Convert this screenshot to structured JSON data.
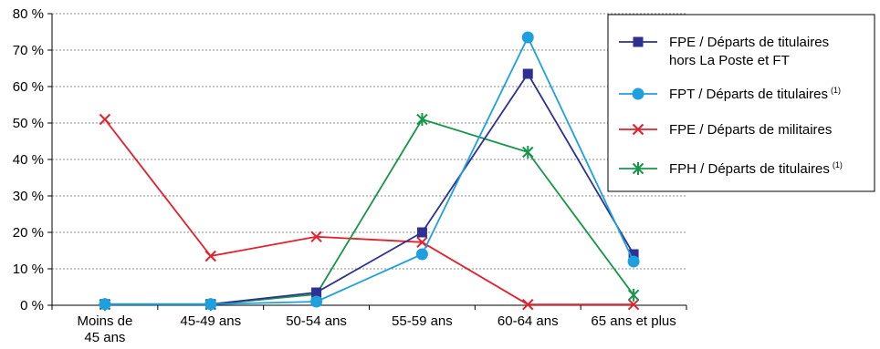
{
  "chart_data": {
    "type": "line",
    "title": "",
    "xlabel": "",
    "ylabel": "",
    "ylim": [
      0,
      80
    ],
    "y_ticks": [
      0,
      10,
      20,
      30,
      40,
      50,
      60,
      70,
      80
    ],
    "y_tick_labels": [
      "0 %",
      "10 %",
      "20 %",
      "30 %",
      "40 %",
      "50 %",
      "60 %",
      "70 %",
      "80 %"
    ],
    "categories": [
      [
        "Moins de",
        "45 ans"
      ],
      [
        "45-49 ans"
      ],
      [
        "50-54 ans"
      ],
      [
        "55-59 ans"
      ],
      [
        "60-64 ans"
      ],
      [
        "65 ans et plus"
      ]
    ],
    "grid": "horizontal dashed",
    "legend_position": "right",
    "series": [
      {
        "name_lines": [
          "FPE / Départs de titulaires",
          "hors La Poste et FT"
        ],
        "footnote": "",
        "marker": "square",
        "color": "#2e3192",
        "values": [
          0.3,
          0.3,
          3.5,
          20,
          63.5,
          14
        ]
      },
      {
        "name_lines": [
          "FPT / Départs de titulaires"
        ],
        "footnote": "(1)",
        "marker": "circle",
        "color": "#1ea0de",
        "values": [
          0.3,
          0.3,
          1,
          14,
          73.5,
          12
        ]
      },
      {
        "name_lines": [
          "FPE / Départs de militaires"
        ],
        "footnote": "",
        "marker": "x",
        "color": "#e3202c",
        "values": [
          51,
          13.5,
          18.8,
          17.3,
          0.2,
          0.2
        ]
      },
      {
        "name_lines": [
          "FPH / Départs de titulaires"
        ],
        "footnote": "(1)",
        "marker": "asterisk",
        "color": "#17964a",
        "values": [
          0.2,
          0.2,
          3,
          51,
          42,
          2.8
        ]
      }
    ]
  }
}
